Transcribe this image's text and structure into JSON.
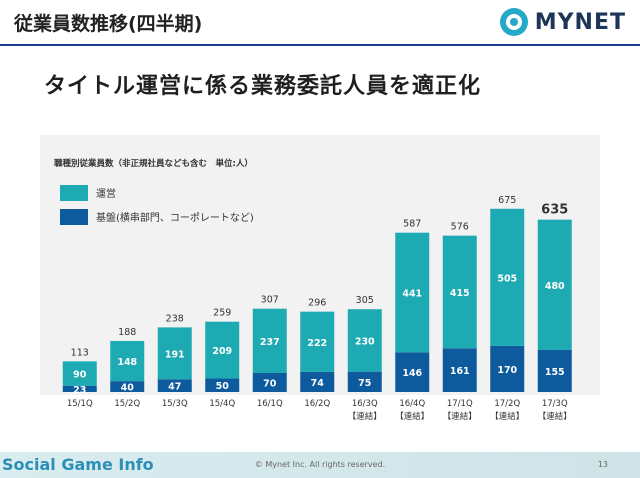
{
  "header": {
    "title": "従業員数推移(四半期)",
    "logo_text": "MYNET"
  },
  "slide": {
    "heading": "タイトル運営に係る業務委託人員を適正化"
  },
  "chart_data": {
    "type": "bar",
    "stacked": true,
    "title": "職種別従業員数（非正規社員なども含む　単位:人）",
    "categories": [
      "15/1Q",
      "15/2Q",
      "15/3Q",
      "15/4Q",
      "16/1Q",
      "16/2Q",
      "16/3Q",
      "16/4Q",
      "17/1Q",
      "17/2Q",
      "17/3Q"
    ],
    "category_notes": [
      "",
      "",
      "",
      "",
      "",
      "",
      "【連結】",
      "【連結】",
      "【連結】",
      "【連結】",
      "【連結】"
    ],
    "series": [
      {
        "name": "基盤(横串部門、コーポレートなど)",
        "color": "#0d5a9c",
        "values": [
          23,
          40,
          47,
          50,
          70,
          74,
          75,
          146,
          161,
          170,
          155
        ]
      },
      {
        "name": "運営",
        "color": "#1eaab3",
        "values": [
          90,
          148,
          191,
          209,
          237,
          222,
          230,
          441,
          415,
          505,
          480
        ]
      }
    ],
    "totals": [
      113,
      188,
      238,
      259,
      307,
      296,
      305,
      587,
      576,
      675,
      635
    ],
    "ylim": [
      0,
      700
    ],
    "legend": "top-left",
    "grid": false
  },
  "footer": {
    "brand": "Social Game Info",
    "copyright": "© Mynet Inc. All rights reserved.",
    "page_number": "13"
  }
}
